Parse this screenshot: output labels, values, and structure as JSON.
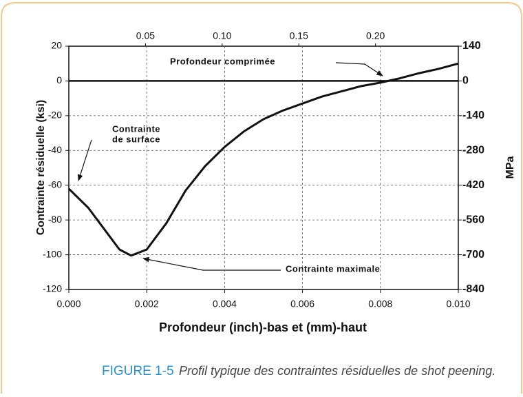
{
  "chart_data": {
    "type": "line",
    "ylabel": "Contrainte résiduelle (ksi)",
    "y2label": "MPa",
    "xlabel": "Profondeur (inch)-bas et (mm)-haut",
    "caption_label": "FIGURE 1-5",
    "caption": "Profil typique des contraintes résiduelles de shot peening.",
    "annotations": [
      "Profondeur comprimée",
      "Contrainte",
      "de surface",
      "Contrainte maximale"
    ],
    "x": [
      0,
      0.0005,
      0.001,
      0.0013,
      0.0016,
      0.002,
      0.0025,
      0.003,
      0.0035,
      0.004,
      0.0045,
      0.005,
      0.0055,
      0.006,
      0.0065,
      0.007,
      0.0075,
      0.008,
      0.0085,
      0.009,
      0.0095,
      0.01
    ],
    "series": [
      {
        "name": "Contrainte",
        "color": "#111111",
        "values": [
          -62,
          -73,
          -88,
          -97,
          -100.5,
          -97,
          -82,
          -63,
          -49,
          -38,
          -29,
          -22,
          -17,
          -13,
          -9,
          -6,
          -3,
          -1,
          1.5,
          4.5,
          7,
          10
        ]
      }
    ],
    "xlim": [
      0,
      0.01
    ],
    "xticks": [
      {
        "value": 0,
        "label": "0.000"
      },
      0.002,
      0.004,
      0.006,
      0.008,
      {
        "value": 0.01,
        "label": "0.010"
      }
    ],
    "x2lim": [
      0,
      0.254
    ],
    "x2ticks": [
      0.05,
      {
        "value": 0.1,
        "label": "0.10"
      },
      0.15,
      {
        "value": 0.2,
        "label": "0.20"
      }
    ],
    "ylim": [
      -120,
      20
    ],
    "yticks": [
      20,
      0,
      -20,
      -40,
      -60,
      -80,
      -100,
      -120
    ],
    "y2lim": [
      -840,
      140
    ],
    "y2ticks": [
      140,
      0,
      -140,
      -280,
      -420,
      -560,
      -700,
      -840
    ],
    "grid": true
  }
}
